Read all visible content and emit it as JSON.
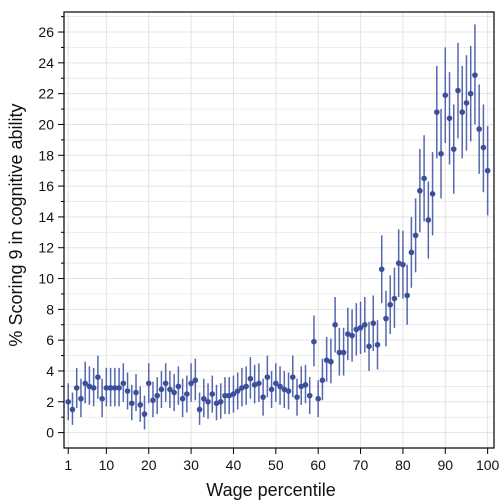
{
  "chart_data": {
    "type": "scatter",
    "title": "",
    "xlabel": "Wage percentile",
    "ylabel": "% Scoring 9 in cognitive ability",
    "xlim": [
      0,
      101.5
    ],
    "ylim": [
      -1,
      27.3
    ],
    "x_ticks": [
      1,
      10,
      20,
      30,
      40,
      50,
      60,
      70,
      80,
      90,
      100
    ],
    "y_ticks": [
      0,
      2,
      4,
      6,
      8,
      10,
      12,
      14,
      16,
      18,
      20,
      22,
      24,
      26
    ],
    "grid": true,
    "error_bars": true,
    "colors": {
      "marker": "#3b4f9a",
      "errorbar": "#5567ad",
      "grid": "#e3e3e3",
      "axis": "#000000"
    },
    "series": [
      {
        "x": [
          1,
          2,
          3,
          4,
          5,
          6,
          7,
          8,
          9,
          10,
          11,
          12,
          13,
          14,
          15,
          16,
          17,
          18,
          19,
          20,
          21,
          22,
          23,
          24,
          25,
          26,
          27,
          28,
          29,
          30,
          31,
          32,
          33,
          34,
          35,
          36,
          37,
          38,
          39,
          40,
          41,
          42,
          43,
          44,
          45,
          46,
          47,
          48,
          49,
          50,
          51,
          52,
          53,
          54,
          55,
          56,
          57,
          58,
          59,
          60,
          61,
          62,
          63,
          64,
          65,
          66,
          67,
          68,
          69,
          70,
          71,
          72,
          73,
          74,
          75,
          76,
          77,
          78,
          79,
          80,
          81,
          82,
          83,
          84,
          85,
          86,
          87,
          88,
          89,
          90,
          91,
          92,
          93,
          94,
          95,
          96,
          97,
          98,
          99,
          100
        ],
        "y": [
          2.0,
          1.5,
          2.9,
          2.2,
          3.2,
          3.0,
          2.9,
          3.6,
          2.2,
          2.9,
          2.9,
          2.9,
          2.9,
          3.2,
          2.7,
          1.9,
          2.6,
          1.8,
          1.2,
          3.2,
          2.1,
          2.4,
          2.8,
          3.2,
          2.8,
          2.6,
          3.0,
          2.2,
          2.5,
          3.2,
          3.4,
          1.5,
          2.2,
          2.0,
          2.5,
          1.9,
          2.0,
          2.4,
          2.4,
          2.5,
          2.7,
          2.9,
          3.0,
          3.5,
          3.1,
          3.2,
          2.3,
          3.6,
          2.8,
          3.2,
          3.0,
          2.8,
          2.7,
          3.6,
          2.3,
          3.0,
          3.1,
          2.4,
          5.9,
          2.2,
          3.4,
          4.7,
          4.6,
          7.0,
          5.2,
          5.2,
          6.4,
          6.3,
          6.7,
          6.8,
          7.0,
          5.6,
          7.1,
          5.7,
          10.6,
          7.4,
          8.3,
          8.7,
          11.0,
          10.9,
          8.9,
          11.7,
          12.8,
          15.7,
          16.5,
          13.8,
          15.5,
          20.8,
          18.1,
          21.9,
          20.4,
          18.4,
          22.2,
          20.8,
          21.4,
          22.0,
          23.2,
          19.7,
          18.5,
          17.0
        ],
        "lo": [
          0.8,
          0.5,
          1.6,
          1.0,
          1.9,
          1.8,
          1.7,
          2.2,
          1.0,
          1.7,
          1.7,
          1.7,
          1.7,
          2.0,
          1.5,
          0.8,
          1.4,
          0.7,
          0.2,
          1.9,
          1.0,
          1.2,
          1.6,
          2.0,
          1.6,
          1.4,
          1.8,
          1.0,
          1.3,
          2.0,
          2.1,
          0.5,
          1.0,
          0.9,
          1.3,
          0.8,
          0.9,
          1.2,
          1.2,
          1.3,
          1.5,
          1.7,
          1.8,
          2.2,
          1.9,
          2.0,
          1.1,
          2.3,
          1.6,
          2.0,
          1.8,
          1.6,
          1.5,
          2.3,
          1.1,
          1.8,
          1.9,
          1.2,
          4.3,
          1.0,
          2.1,
          3.3,
          3.2,
          5.2,
          3.7,
          3.7,
          4.7,
          4.6,
          5.0,
          5.1,
          5.2,
          4.0,
          5.3,
          4.1,
          8.4,
          5.6,
          6.4,
          6.8,
          8.8,
          8.7,
          7.0,
          9.4,
          10.4,
          13.0,
          13.7,
          11.3,
          12.8,
          17.8,
          15.2,
          18.8,
          17.4,
          15.5,
          19.1,
          17.8,
          18.3,
          18.9,
          20.0,
          16.8,
          15.6,
          14.1
        ],
        "hi": [
          3.2,
          2.6,
          4.2,
          3.5,
          4.6,
          4.3,
          4.2,
          5.0,
          3.5,
          4.2,
          4.2,
          4.2,
          4.2,
          4.5,
          3.9,
          3.1,
          3.8,
          3.0,
          2.4,
          4.5,
          3.3,
          3.6,
          4.0,
          4.5,
          4.0,
          3.8,
          4.3,
          3.5,
          3.7,
          4.5,
          4.8,
          2.6,
          3.5,
          3.2,
          3.7,
          3.1,
          3.2,
          3.6,
          3.6,
          3.7,
          3.9,
          4.2,
          4.3,
          4.9,
          4.4,
          4.5,
          3.5,
          5.0,
          4.0,
          4.5,
          4.3,
          4.0,
          3.9,
          5.0,
          3.5,
          4.3,
          4.4,
          3.6,
          7.6,
          3.4,
          4.8,
          6.2,
          6.1,
          8.8,
          6.8,
          6.8,
          8.1,
          8.0,
          8.4,
          8.5,
          8.8,
          7.2,
          8.9,
          7.3,
          12.8,
          9.2,
          10.2,
          10.7,
          13.2,
          13.1,
          10.9,
          14.0,
          15.2,
          18.4,
          19.3,
          16.3,
          18.2,
          23.8,
          21.0,
          25.0,
          23.4,
          21.3,
          25.3,
          23.8,
          24.5,
          25.1,
          26.5,
          22.6,
          21.3,
          19.9
        ]
      }
    ]
  }
}
